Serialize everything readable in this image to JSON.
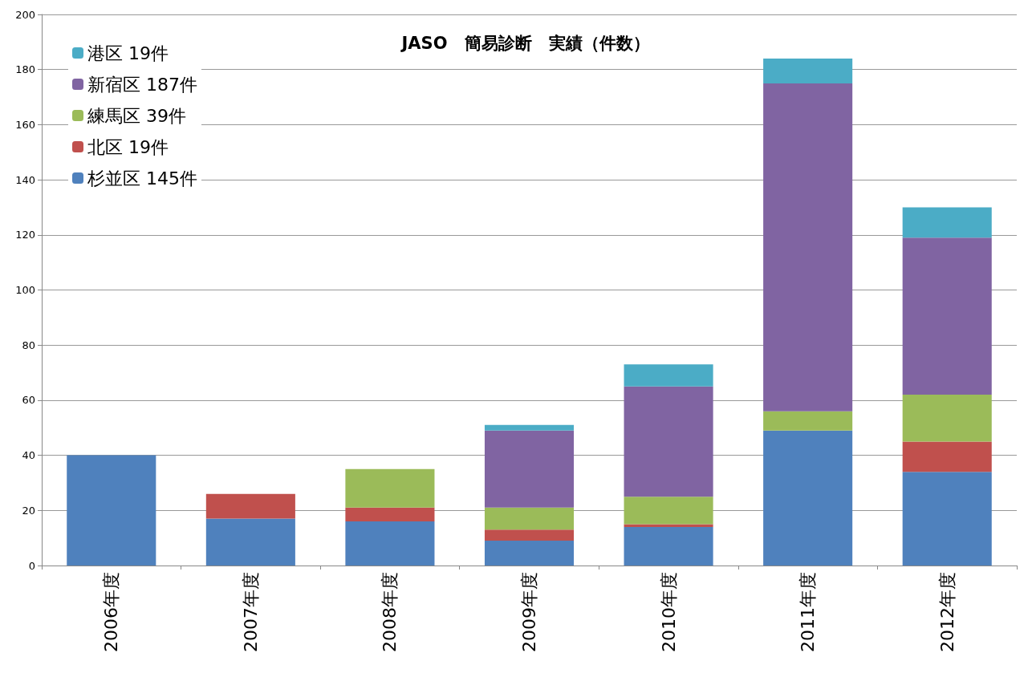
{
  "chart_data": {
    "type": "bar",
    "title": "JASO　簡易診断　実績（件数）",
    "categories": [
      "2006年度",
      "2007年度",
      "2008年度",
      "2009年度",
      "2010年度",
      "2011年度",
      "2012年度"
    ],
    "stacked": true,
    "series": [
      {
        "name": "杉並区 145件",
        "color": "#4f81bd",
        "values": [
          40,
          17,
          16,
          9,
          14,
          49,
          34
        ]
      },
      {
        "name": "北区 19件",
        "color": "#c0504d",
        "values": [
          0,
          9,
          5,
          4,
          1,
          0,
          11
        ]
      },
      {
        "name": "練馬区 39件",
        "color": "#9bbb59",
        "values": [
          0,
          0,
          14,
          8,
          10,
          7,
          17
        ]
      },
      {
        "name": "新宿区 187件",
        "color": "#8064a2",
        "values": [
          0,
          0,
          0,
          28,
          40,
          119,
          57
        ]
      },
      {
        "name": "港区 19件",
        "color": "#4bacc6",
        "values": [
          0,
          0,
          0,
          2,
          8,
          9,
          11
        ]
      }
    ],
    "ylim": [
      0,
      200
    ],
    "yticks": [
      0,
      20,
      40,
      60,
      80,
      100,
      120,
      140,
      160,
      180,
      200
    ],
    "grid": "y",
    "legend": "top left"
  }
}
